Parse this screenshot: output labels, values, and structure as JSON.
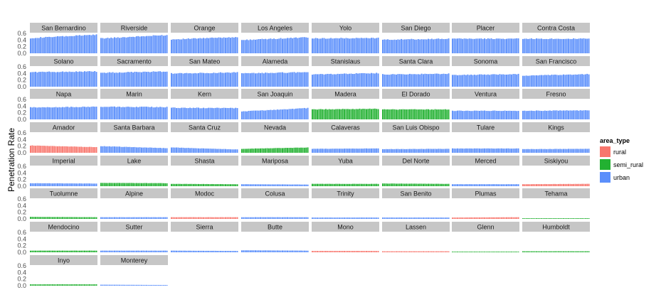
{
  "chart_data": {
    "type": "bar",
    "title": "",
    "xlabel": "",
    "ylabel": "Penetration Rate",
    "ylim": [
      0,
      0.6
    ],
    "yticks": [
      "0.6",
      "0.4",
      "0.2",
      "0.0"
    ],
    "grid": false,
    "n_periods": 40,
    "legend": {
      "title": "area_type",
      "placement": "right",
      "entries": [
        {
          "key": "rural",
          "label": "rural",
          "color": "#f8766d"
        },
        {
          "key": "semi_rural",
          "label": "semi_rural",
          "color": "#22b131"
        },
        {
          "key": "urban",
          "label": "urban",
          "color": "#5b8ffb"
        }
      ]
    },
    "strip_fill": "#c6c6c6",
    "panels": [
      {
        "name": "San Bernardino",
        "area_type": "urban",
        "start": 0.46,
        "end": 0.56
      },
      {
        "name": "Riverside",
        "area_type": "urban",
        "start": 0.45,
        "end": 0.55
      },
      {
        "name": "Orange",
        "area_type": "urban",
        "start": 0.42,
        "end": 0.49
      },
      {
        "name": "Los Angeles",
        "area_type": "urban",
        "start": 0.4,
        "end": 0.48
      },
      {
        "name": "Yolo",
        "area_type": "urban",
        "start": 0.45,
        "end": 0.46
      },
      {
        "name": "San Diego",
        "area_type": "urban",
        "start": 0.41,
        "end": 0.44
      },
      {
        "name": "Placer",
        "area_type": "urban",
        "start": 0.44,
        "end": 0.44
      },
      {
        "name": "Contra Costa",
        "area_type": "urban",
        "start": 0.44,
        "end": 0.44
      },
      {
        "name": "Solano",
        "area_type": "urban",
        "start": 0.44,
        "end": 0.46
      },
      {
        "name": "Sacramento",
        "area_type": "urban",
        "start": 0.42,
        "end": 0.46
      },
      {
        "name": "San Mateo",
        "area_type": "urban",
        "start": 0.4,
        "end": 0.43
      },
      {
        "name": "Alameda",
        "area_type": "urban",
        "start": 0.4,
        "end": 0.44
      },
      {
        "name": "Stanislaus",
        "area_type": "urban",
        "start": 0.37,
        "end": 0.41
      },
      {
        "name": "Santa Clara",
        "area_type": "urban",
        "start": 0.37,
        "end": 0.39
      },
      {
        "name": "Sonoma",
        "area_type": "urban",
        "start": 0.35,
        "end": 0.38
      },
      {
        "name": "San Francisco",
        "area_type": "urban",
        "start": 0.33,
        "end": 0.38
      },
      {
        "name": "Napa",
        "area_type": "urban",
        "start": 0.36,
        "end": 0.38
      },
      {
        "name": "Marin",
        "area_type": "urban",
        "start": 0.38,
        "end": 0.37
      },
      {
        "name": "Kern",
        "area_type": "urban",
        "start": 0.35,
        "end": 0.34
      },
      {
        "name": "San Joaquin",
        "area_type": "urban",
        "start": 0.24,
        "end": 0.34
      },
      {
        "name": "Madera",
        "area_type": "semi_rural",
        "start": 0.3,
        "end": 0.32
      },
      {
        "name": "El Dorado",
        "area_type": "semi_rural",
        "start": 0.3,
        "end": 0.3
      },
      {
        "name": "Ventura",
        "area_type": "urban",
        "start": 0.26,
        "end": 0.26
      },
      {
        "name": "Fresno",
        "area_type": "urban",
        "start": 0.26,
        "end": 0.27
      },
      {
        "name": "Amador",
        "area_type": "rural",
        "start": 0.22,
        "end": 0.17
      },
      {
        "name": "Santa Barbara",
        "area_type": "urban",
        "start": 0.2,
        "end": 0.14
      },
      {
        "name": "Santa Cruz",
        "area_type": "urban",
        "start": 0.16,
        "end": 0.1
      },
      {
        "name": "Nevada",
        "area_type": "semi_rural",
        "start": 0.12,
        "end": 0.16
      },
      {
        "name": "Calaveras",
        "area_type": "urban",
        "start": 0.12,
        "end": 0.13
      },
      {
        "name": "San Luis Obispo",
        "area_type": "urban",
        "start": 0.11,
        "end": 0.12
      },
      {
        "name": "Tulare",
        "area_type": "urban",
        "start": 0.13,
        "end": 0.13
      },
      {
        "name": "Kings",
        "area_type": "urban",
        "start": 0.11,
        "end": 0.12
      },
      {
        "name": "Imperial",
        "area_type": "urban",
        "start": 0.09,
        "end": 0.08
      },
      {
        "name": "Lake",
        "area_type": "semi_rural",
        "start": 0.1,
        "end": 0.09
      },
      {
        "name": "Shasta",
        "area_type": "semi_rural",
        "start": 0.07,
        "end": 0.06
      },
      {
        "name": "Mariposa",
        "area_type": "urban",
        "start": 0.06,
        "end": 0.05
      },
      {
        "name": "Yuba",
        "area_type": "semi_rural",
        "start": 0.07,
        "end": 0.07
      },
      {
        "name": "Del Norte",
        "area_type": "semi_rural",
        "start": 0.08,
        "end": 0.07
      },
      {
        "name": "Merced",
        "area_type": "urban",
        "start": 0.06,
        "end": 0.06
      },
      {
        "name": "Siskiyou",
        "area_type": "rural",
        "start": 0.06,
        "end": 0.07
      },
      {
        "name": "Tuolumne",
        "area_type": "semi_rural",
        "start": 0.06,
        "end": 0.05
      },
      {
        "name": "Alpine",
        "area_type": "urban",
        "start": 0.05,
        "end": 0.05
      },
      {
        "name": "Modoc",
        "area_type": "rural",
        "start": 0.05,
        "end": 0.05
      },
      {
        "name": "Colusa",
        "area_type": "urban",
        "start": 0.05,
        "end": 0.05
      },
      {
        "name": "Trinity",
        "area_type": "urban",
        "start": 0.04,
        "end": 0.04
      },
      {
        "name": "San Benito",
        "area_type": "urban",
        "start": 0.04,
        "end": 0.04
      },
      {
        "name": "Plumas",
        "area_type": "rural",
        "start": 0.04,
        "end": 0.05
      },
      {
        "name": "Tehama",
        "area_type": "semi_rural",
        "start": 0.02,
        "end": 0.02
      },
      {
        "name": "Mendocino",
        "area_type": "semi_rural",
        "start": 0.05,
        "end": 0.05
      },
      {
        "name": "Sutter",
        "area_type": "urban",
        "start": 0.05,
        "end": 0.05
      },
      {
        "name": "Sierra",
        "area_type": "urban",
        "start": 0.05,
        "end": 0.04
      },
      {
        "name": "Butte",
        "area_type": "urban",
        "start": 0.06,
        "end": 0.05
      },
      {
        "name": "Mono",
        "area_type": "rural",
        "start": 0.04,
        "end": 0.04
      },
      {
        "name": "Lassen",
        "area_type": "rural",
        "start": 0.03,
        "end": 0.03
      },
      {
        "name": "Glenn",
        "area_type": "semi_rural",
        "start": 0.02,
        "end": 0.02
      },
      {
        "name": "Humboldt",
        "area_type": "semi_rural",
        "start": 0.03,
        "end": 0.03
      },
      {
        "name": "Inyo",
        "area_type": "semi_rural",
        "start": 0.04,
        "end": 0.04
      },
      {
        "name": "Monterey",
        "area_type": "urban",
        "start": 0.03,
        "end": 0.02
      }
    ]
  }
}
